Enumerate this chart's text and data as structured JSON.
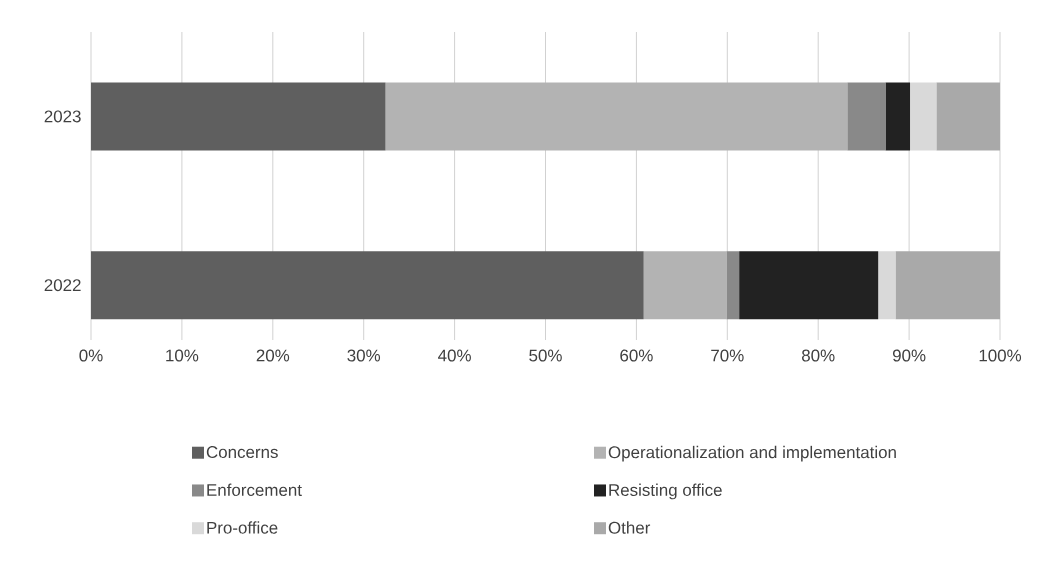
{
  "chart_data": {
    "type": "bar",
    "orientation": "horizontal",
    "stacked": true,
    "categories": [
      "2023",
      "2022"
    ],
    "series": [
      {
        "name": "Concerns",
        "color": "#5f5f5f",
        "values": [
          32.4,
          60.8
        ]
      },
      {
        "name": "Operationalization and implementation",
        "color": "#b3b3b3",
        "values": [
          50.8,
          9.1
        ]
      },
      {
        "name": "Enforcement",
        "color": "#898989",
        "values": [
          4.2,
          1.4
        ]
      },
      {
        "name": "Resisting office",
        "color": "#222222",
        "values": [
          2.7,
          15.3
        ]
      },
      {
        "name": "Pro-office",
        "color": "#d9d9d9",
        "values": [
          2.9,
          1.9
        ]
      },
      {
        "name": "Other",
        "color": "#a9a9a9",
        "values": [
          7.0,
          11.5
        ]
      }
    ],
    "xlim": [
      0,
      100
    ],
    "xticks": [
      {
        "value": 0,
        "label": "0%"
      },
      {
        "value": 10,
        "label": "10%"
      },
      {
        "value": 20,
        "label": "20%"
      },
      {
        "value": 30,
        "label": "30%"
      },
      {
        "value": 40,
        "label": "40%"
      },
      {
        "value": 50,
        "label": "50%"
      },
      {
        "value": 60,
        "label": "60%"
      },
      {
        "value": 70,
        "label": "70%"
      },
      {
        "value": 80,
        "label": "80%"
      },
      {
        "value": 90,
        "label": "90%"
      },
      {
        "value": 100,
        "label": "100%"
      }
    ],
    "grid": "x",
    "legend": "bottom"
  }
}
